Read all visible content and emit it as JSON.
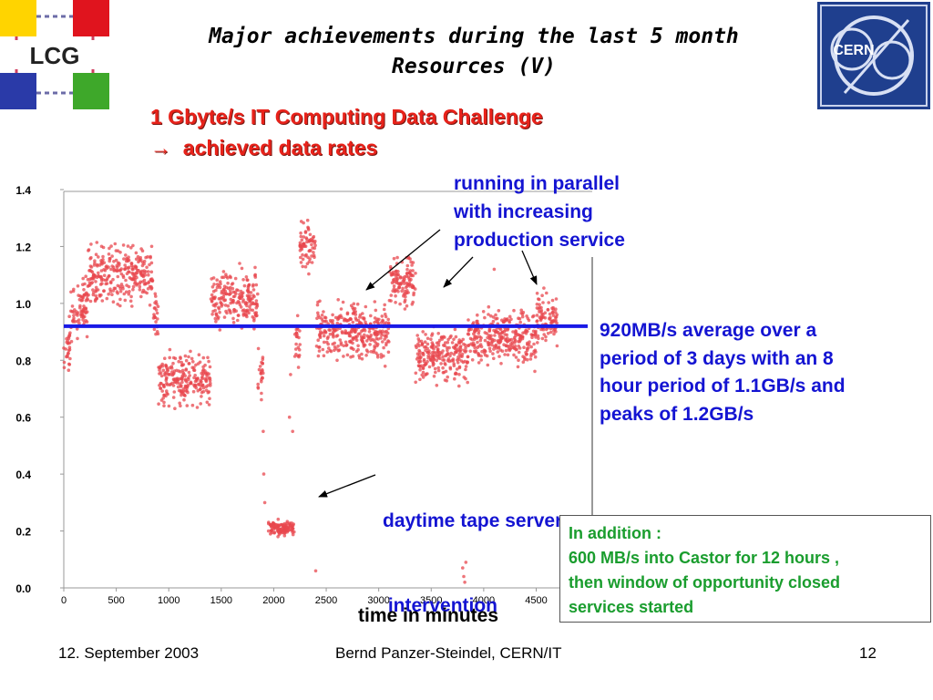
{
  "slide": {
    "title_line1": "Major achievements during the last 5 month",
    "title_line2": "Resources (V)",
    "subtitle_line1": "1 Gbyte/s  IT Computing Data Challenge",
    "subtitle_arrow": "→",
    "subtitle_line2": "achieved data rates",
    "logo_left": "LCG",
    "logo_right": "CERN"
  },
  "annotations": {
    "parallel": [
      "running in parallel",
      "with increasing",
      "production service"
    ],
    "average": [
      "920MB/s average over a",
      "period of 3 days with an 8",
      "hour period of 1.1GB/s and",
      "peaks of 1.2GB/s"
    ],
    "intervention": [
      "daytime tape server",
      " intervention"
    ],
    "addition": [
      "In addition :",
      "600 MB/s into Castor for 12 hours ,",
      "then window of opportunity closed",
      "services started"
    ]
  },
  "xlabel": "time in minutes",
  "footer": {
    "date": "12. September 2003",
    "author": "Bernd Panzer-Steindel, CERN/IT",
    "page": "12"
  },
  "colors": {
    "points": "#e8474d",
    "average_line": "#1a1ae6",
    "annotation": "#1414d2",
    "subtitle": "#e8221a",
    "addition": "#1a9d2e"
  },
  "chart_data": {
    "type": "scatter",
    "xlim": [
      0,
      5000
    ],
    "ylim": [
      0,
      1.4
    ],
    "x_ticks": [
      "0",
      "500",
      "1000",
      "1500",
      "2000",
      "2500",
      "3000",
      "3500",
      "4000",
      "4500"
    ],
    "y_ticks": [
      "0.0",
      "0.2",
      "0.4",
      "0.6",
      "0.8",
      "1.0",
      "1.2",
      "1.4"
    ],
    "average_line": 0.92,
    "segments": [
      {
        "x_start": 0,
        "x_end": 60,
        "y": 0.85
      },
      {
        "x_start": 60,
        "x_end": 230,
        "y": 0.98
      },
      {
        "x_start": 230,
        "x_end": 850,
        "y": 1.1
      },
      {
        "x_start": 850,
        "x_end": 900,
        "y": 0.95
      },
      {
        "x_start": 900,
        "x_end": 1400,
        "y": 0.73
      },
      {
        "x_start": 1400,
        "x_end": 1850,
        "y": 1.02
      },
      {
        "x_start": 1850,
        "x_end": 1900,
        "y": 0.75
      },
      {
        "x_start": 1950,
        "x_end": 2200,
        "y": 0.21
      },
      {
        "x_start": 2200,
        "x_end": 2250,
        "y": 0.85
      },
      {
        "x_start": 2250,
        "x_end": 2400,
        "y": 1.2
      },
      {
        "x_start": 2400,
        "x_end": 3100,
        "y": 0.9
      },
      {
        "x_start": 3100,
        "x_end": 3350,
        "y": 1.08
      },
      {
        "x_start": 3350,
        "x_end": 3850,
        "y": 0.82
      },
      {
        "x_start": 3850,
        "x_end": 4500,
        "y": 0.88
      },
      {
        "x_start": 4500,
        "x_end": 4700,
        "y": 0.95
      }
    ],
    "outliers": [
      {
        "x": 1900,
        "y": 0.55
      },
      {
        "x": 1905,
        "y": 0.4
      },
      {
        "x": 1915,
        "y": 0.3
      },
      {
        "x": 2150,
        "y": 0.6
      },
      {
        "x": 2160,
        "y": 0.75
      },
      {
        "x": 2180,
        "y": 0.55
      },
      {
        "x": 2400,
        "y": 0.06
      },
      {
        "x": 3800,
        "y": 0.07
      },
      {
        "x": 3810,
        "y": 0.04
      },
      {
        "x": 3820,
        "y": 0.02
      },
      {
        "x": 3830,
        "y": 0.09
      },
      {
        "x": 4100,
        "y": 1.12
      }
    ]
  }
}
